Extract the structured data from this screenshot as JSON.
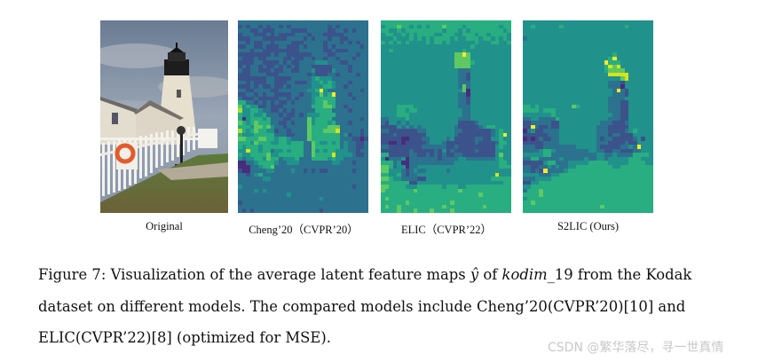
{
  "figure": {
    "panels": [
      {
        "id": "original",
        "label": "Original"
      },
      {
        "id": "cheng",
        "label": "Cheng’20（CVPR’20）"
      },
      {
        "id": "elic",
        "label": "ELIC（CVPR’22）"
      },
      {
        "id": "s2lic",
        "label": "S2LIC (Ours)"
      }
    ],
    "colormap": [
      "#440154",
      "#472d7b",
      "#3b528b",
      "#2c728e",
      "#21918c",
      "#28ae80",
      "#5ec962",
      "#addc30",
      "#d8e219",
      "#fde725"
    ],
    "grid": {
      "cols": 32,
      "rows": 48
    },
    "maps": {
      "cheng": [
        "33333333333333333333333333333333",
        "23233232332323333333332323333333",
        "33322322233332222333332233232333",
        "23332223232222333233322222333333",
        "22233322222233332323332332233333",
        "33232233233332223333323332323233",
        "22332232223322232333323233333323",
        "33323322222222233333322322233333",
        "22222222323322222233332233333233",
        "32223223333223223323323323332333",
        "22223322223232233334443332233333",
        "23233232232323233322222333323333",
        "32233222322332233342222433323333",
        "22233332223333333232223323333233",
        "22222223322223333345444333333333",
        "33232223322233222344545433323333",
        "22232322322323333344455433233333",
        "33223333223333333445943333333323",
        "22332323322223323344645933323333",
        "32223222223323233345555533332333",
        "55332323232232333345565533333333",
        "64544223222333333355566533233333",
        "74455433223232333335555333323333",
        "54454453332322323444555533333333",
        "51455545333223333645555333333323",
        "65456555332232333645554533323333",
        "55546656433233333655556663333333",
        "75456554423323333655566683333323",
        "54445555533322333655555553423323",
        "66555665545543333655555553332212",
        "55546555445545553365445453433223",
        "54555455555555553365555553433223",
        "44855455344545553364545544433233",
        "54455556445555553365555844443223",
        "43445546553444533355554544333333",
        "11334555543344433333333443332333",
        "11133455633333333333333333333333",
        "21133334433334332323223333332333",
        "33234533333333333333333333333333",
        "33333344333333333333333333333333",
        "33333333333333333333333333333333",
        "43333333333333333333333333332333",
        "33334343333333333333333333333333",
        "33333333333343333333333333333333",
        "33333333333333333333433333333333",
        "23333333333333333333333333333333",
        "33333333333333333333333333333333",
        "32323333333333333333233333333333"
      ],
      "elic": [
        "55555555555555555555555555555555",
        "45556554545455565555455555555455",
        "55445455555555545554545555555545",
        "45544545455554455544555455455554",
        "44454445454545555454455545545454",
        "54545454444545545444444544455445",
        "44444444444444444444445444444444",
        "44544444444444444444544444444444",
        "44444444444444444466964444444444",
        "44444444444444444466664444444444",
        "44444444444444444466665444444444",
        "44444444444444444466664444444444",
        "44444444444444444443334444444444",
        "44444444444444444443324444444444",
        "44444444444444444443324444444444",
        "44444444444444444443334444444444",
        "44444444444444444443634444444444",
        "44444444444444444444614444444444",
        "44444444444444444443314444444444",
        "44444444444444444443324444444444",
        "44444444444444444443324444444444",
        "44445555444444444443334444444444",
        "44445545544444444444334444444444",
        "44445554444444444444334444444444",
        "33444454444444444443334444444444",
        "32443434444444444442222344444444",
        "22224343434444444432222234554444",
        "33222222233444444433222222234544",
        "22232222222444444432222222234594",
        "22222112223344443422222332244544",
        "22112122222344432222222322223554",
        "33222222223333332232222222224544",
        "22222223222223242322222322224444",
        "55222223322323232233222222224644",
        "41333413333333233334433333334544",
        "55534113333333333344444444444554",
        "66534413344444444444444444444555",
        "66444323433444443444444444444444",
        "55445323344444444444444444448444",
        "66544333322444444444444444455555",
        "55555552244444444444444444444455",
        "66555544455555545554455555555555",
        "65555555655555555556555555555555",
        "55555555555555555555555565555555",
        "56555555555555555555555555555555",
        "55555565555555555655555555555555",
        "56556555555555565555555556555555",
        "55556555655565555655555555555555"
      ],
      "s2lic": [
        "44444444444444444444444444444444",
        "44544444454444444444444445444444",
        "44444444444444444444444444444444",
        "44444444444444444444444444444444",
        "34444444444444444444444444444444",
        "44444444444444444444444444444444",
        "44444444444444444444444444444444",
        "44444444444444444444444444444444",
        "44444444444444444444445444444444",
        "44444444444444444444459444444444",
        "44444444444444444444955544444444",
        "44444444444444444444586844444444",
        "44444444444444444444566664444444",
        "44444444444444444444488888444444",
        "44444444444444444444444468444444",
        "44444444444444444444433324444444",
        "44444444444444444444433314444444",
        "44444444444444444444443932444444",
        "44444444444444444444443332444444",
        "44444444444444444444433334444444",
        "44444444444444444444433322444444",
        "55454444444465444444433322444444",
        "55554555444444444444433322444444",
        "44444445444444444444443322444444",
        "33443333544444444444433322444444",
        "22333332244444444443332223444444",
        "22932232244444444433322222444444",
        "13422333344444444433322223454444",
        "22222233344444444433323322244444",
        "12123223344444444432332222234244",
        "22222333344444444433322223224444",
        "33322333333334444432222233439444",
        "33334554333333334433223322233444",
        "44444553333333333344334333355554",
        "33553333343333343344344444555444",
        "22222455333444445555544444555544",
        "33223343433445555555554455555555",
        "33232933334555555555555555555555",
        "44443334455555555555555555555555",
        "33344445555555555555555555555555",
        "22445555555555555555555555555555",
        "44555555555555555555555555555555",
        "35556555555555555555555555555555",
        "55556555555555555555555555555555",
        "45555555555555555555555555555555",
        "55655555555555555555555555555555",
        "55555555555555555556555555555555",
        "55555555555555555555555555555555"
      ]
    }
  },
  "caption": {
    "line1_pre": "Figure 7: Visualization of the average latent feature maps ",
    "line1_sym": "ŷ",
    "line1_mid": " of ",
    "line1_name": "kodim",
    "line1_post": "_19 from the Kodak",
    "line2": "dataset on different models.  The compared models include Cheng’20(CVPR’20)[10] and",
    "line3": "ELIC(CVPR’22)[8] (optimized for MSE)."
  },
  "watermark": "CSDN @繁华落尽，寻一世真情"
}
